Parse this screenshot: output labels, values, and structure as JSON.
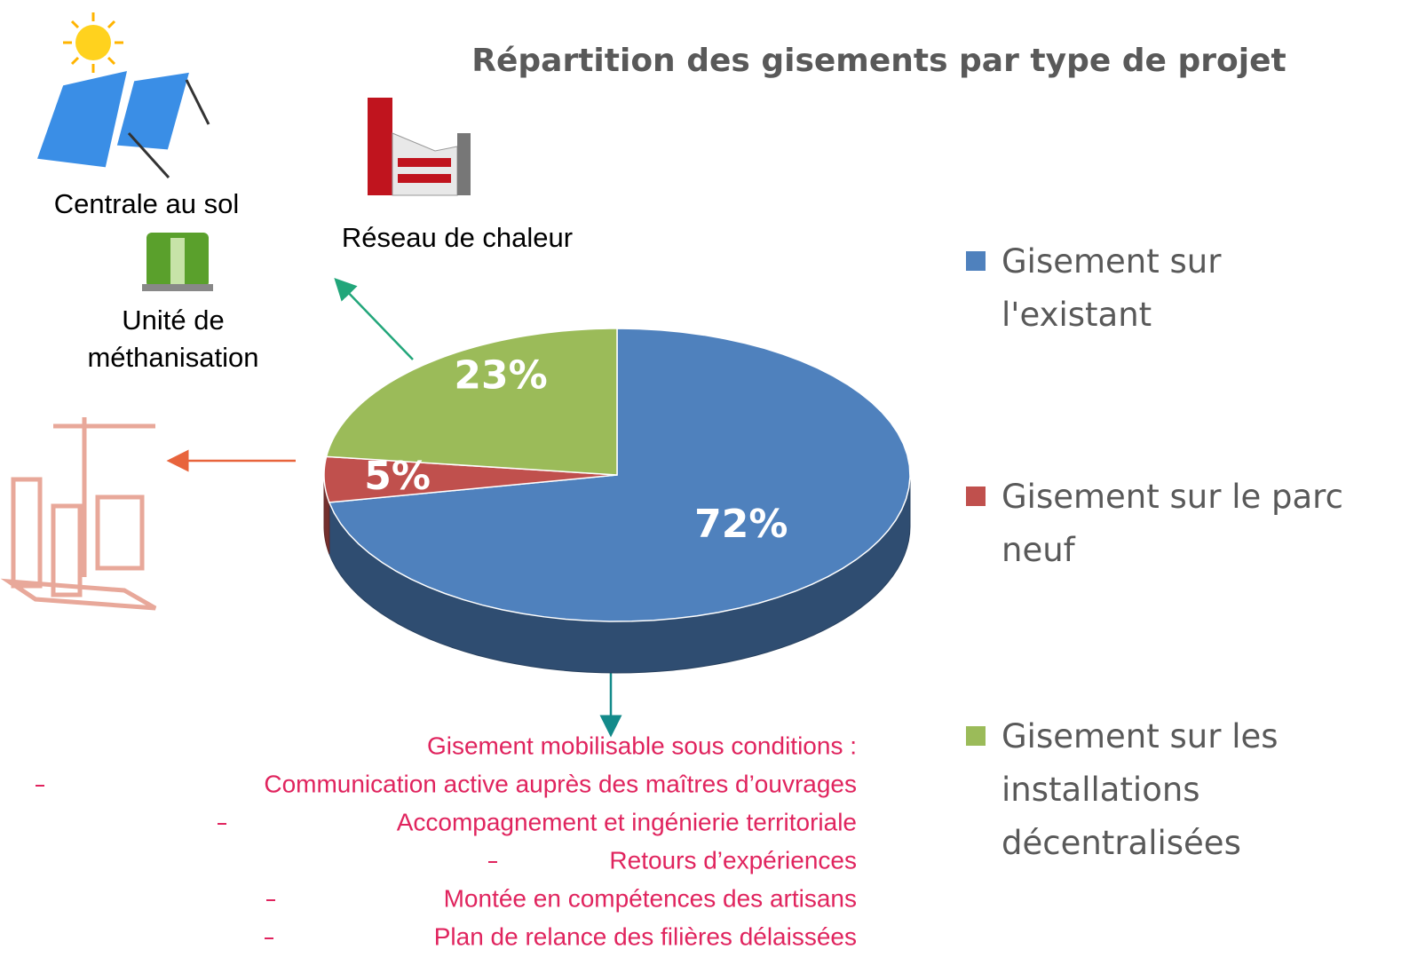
{
  "chart_data": {
    "type": "pie",
    "title": "Répartition des gisements par type de projet",
    "categories": [
      "Gisement sur l'existant",
      "Gisement sur le parc neuf",
      "Gisement sur les installations décentralisées"
    ],
    "values": [
      72,
      5,
      23
    ],
    "value_labels": [
      "72%",
      "5%",
      "23%"
    ],
    "colors": [
      "#4f81bd",
      "#c0504d",
      "#9bbb59"
    ],
    "annotations": [
      "Centrale au sol",
      "Réseau de chaleur",
      "Unité de méthanisation"
    ],
    "conditions": {
      "title": "Gisement mobilisable sous conditions :",
      "items": [
        "Communication active auprès des maîtres d’ouvrages",
        "Accompagnement et ingénierie territoriale",
        "Retours d’expériences",
        "Montée en compétences des artisans",
        "Plan de relance des filières délaissées"
      ]
    }
  }
}
